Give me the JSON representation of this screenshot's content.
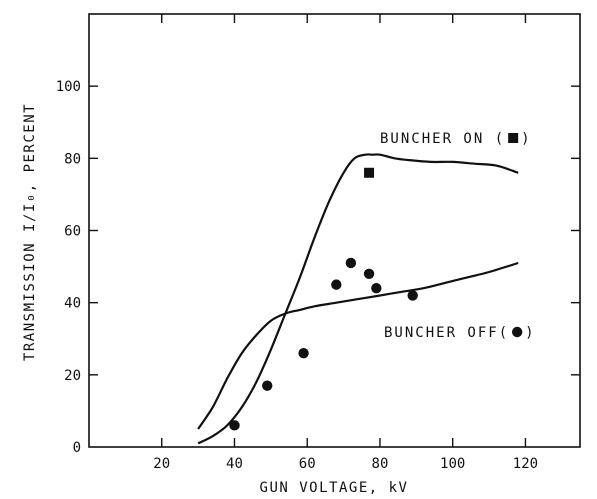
{
  "chart_data": {
    "type": "line",
    "title": "",
    "xlabel": "GUN VOLTAGE, kV",
    "ylabel": "TRANSMISSION I/I₀, PERCENT",
    "xlim": [
      0,
      135
    ],
    "ylim": [
      0,
      120
    ],
    "x_ticks": [
      20,
      40,
      60,
      80,
      100,
      120
    ],
    "y_ticks": [
      0,
      20,
      40,
      60,
      80,
      100
    ],
    "grid": false,
    "series": [
      {
        "name": "BUNCHER ON",
        "marker": "square",
        "curve": {
          "x": [
            30,
            34,
            38,
            42,
            46,
            50,
            54,
            58,
            62,
            66,
            70,
            73,
            76,
            78,
            80,
            84,
            88,
            94,
            100,
            106,
            112,
            118
          ],
          "y": [
            1,
            3,
            6,
            11,
            18,
            27,
            37,
            47,
            58,
            68,
            76,
            80,
            81,
            81,
            81,
            80,
            79.5,
            79,
            79,
            78.5,
            78,
            76
          ]
        },
        "points": {
          "x": [
            77
          ],
          "y": [
            76
          ]
        }
      },
      {
        "name": "BUNCHER OFF",
        "marker": "circle",
        "curve": {
          "x": [
            30,
            34,
            38,
            42,
            46,
            50,
            54,
            58,
            62,
            68,
            74,
            80,
            86,
            92,
            98,
            104,
            110,
            118
          ],
          "y": [
            5,
            11,
            19,
            26,
            31,
            35,
            37,
            38,
            39,
            40,
            41,
            42,
            43,
            44,
            45.5,
            47,
            48.5,
            51
          ]
        },
        "points": {
          "x": [
            40,
            49,
            59,
            68,
            72,
            77,
            79,
            89
          ],
          "y": [
            6,
            17,
            26,
            45,
            51,
            48,
            44,
            42
          ]
        }
      }
    ],
    "annotations": [
      {
        "text": "BUNCHER ON (",
        "marker": "square",
        "close": ")"
      },
      {
        "text": "BUNCHER OFF(",
        "marker": "circle",
        "close": ")"
      }
    ]
  }
}
